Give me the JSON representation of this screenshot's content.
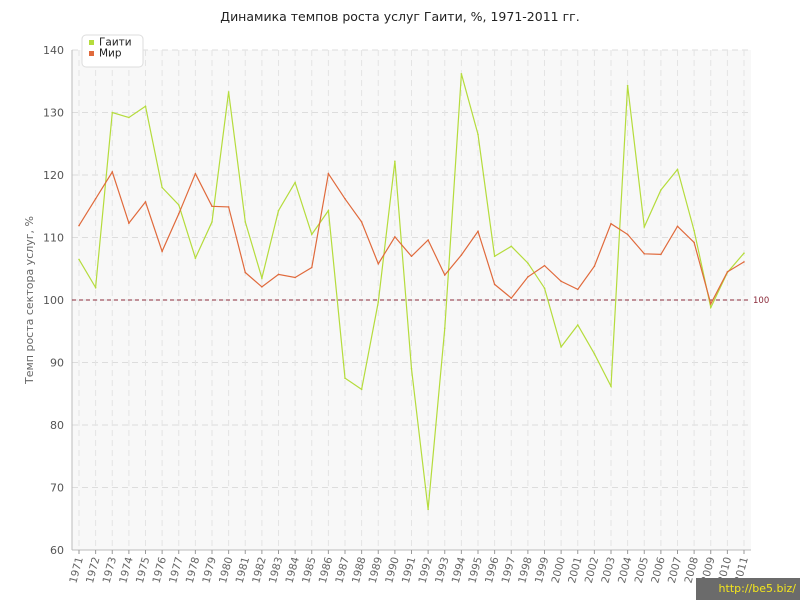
{
  "chart_data": {
    "type": "line",
    "title": "Динамика темпов роста услуг Гаити, %, 1971-2011 гг.",
    "ylabel": "Темп роста сектора услуг, %",
    "xlabel": "",
    "ylim": [
      60,
      140
    ],
    "yticks": [
      60,
      70,
      80,
      90,
      100,
      110,
      120,
      130,
      140
    ],
    "grid": true,
    "legend_position": "top-left",
    "reference_line": {
      "value": 100,
      "label": "100",
      "color": "#8b2a3a"
    },
    "x": [
      "1971",
      "1972",
      "1973",
      "1974",
      "1975",
      "1976",
      "1977",
      "1978",
      "1979",
      "1980",
      "1981",
      "1982",
      "1983",
      "1984",
      "1985",
      "1986",
      "1987",
      "1988",
      "1989",
      "1990",
      "1991",
      "1992",
      "1993",
      "1994",
      "1995",
      "1996",
      "1997",
      "1998",
      "1999",
      "2000",
      "2001",
      "2002",
      "2003",
      "2004",
      "2005",
      "2006",
      "2007",
      "2008",
      "2009",
      "2010",
      "2011"
    ],
    "series": [
      {
        "name": "Гаити",
        "color": "#b5dc3c",
        "values": [
          106.5,
          102,
          130,
          129.2,
          131,
          118,
          115.2,
          106.7,
          112.5,
          133.3,
          112.5,
          103.5,
          114.3,
          118.8,
          110.5,
          114.3,
          87.5,
          85.7,
          99.7,
          122.2,
          89,
          66.5,
          95.5,
          136.2,
          126.5,
          107,
          108.6,
          105.9,
          101.9,
          92.5,
          96,
          91.4,
          86.2,
          134.3,
          111.7,
          117.6,
          120.9,
          111.1,
          98.8,
          104.4,
          107.5
        ]
      },
      {
        "name": "Мир",
        "color": "#e06a3c",
        "values": [
          111.9,
          116.2,
          120.5,
          112.3,
          115.7,
          107.8,
          113.8,
          120.2,
          115,
          114.9,
          104.4,
          102.1,
          104.1,
          103.6,
          105.2,
          120.2,
          116.2,
          112.5,
          105.8,
          110.1,
          107,
          109.6,
          104,
          107.2,
          111,
          102.5,
          100.3,
          103.7,
          105.5,
          103,
          101.7,
          105.4,
          112.2,
          110.5,
          107.4,
          107.3,
          111.8,
          109.2,
          99.4,
          104.5,
          106.1
        ]
      }
    ]
  },
  "watermark": "http://be5.biz/"
}
